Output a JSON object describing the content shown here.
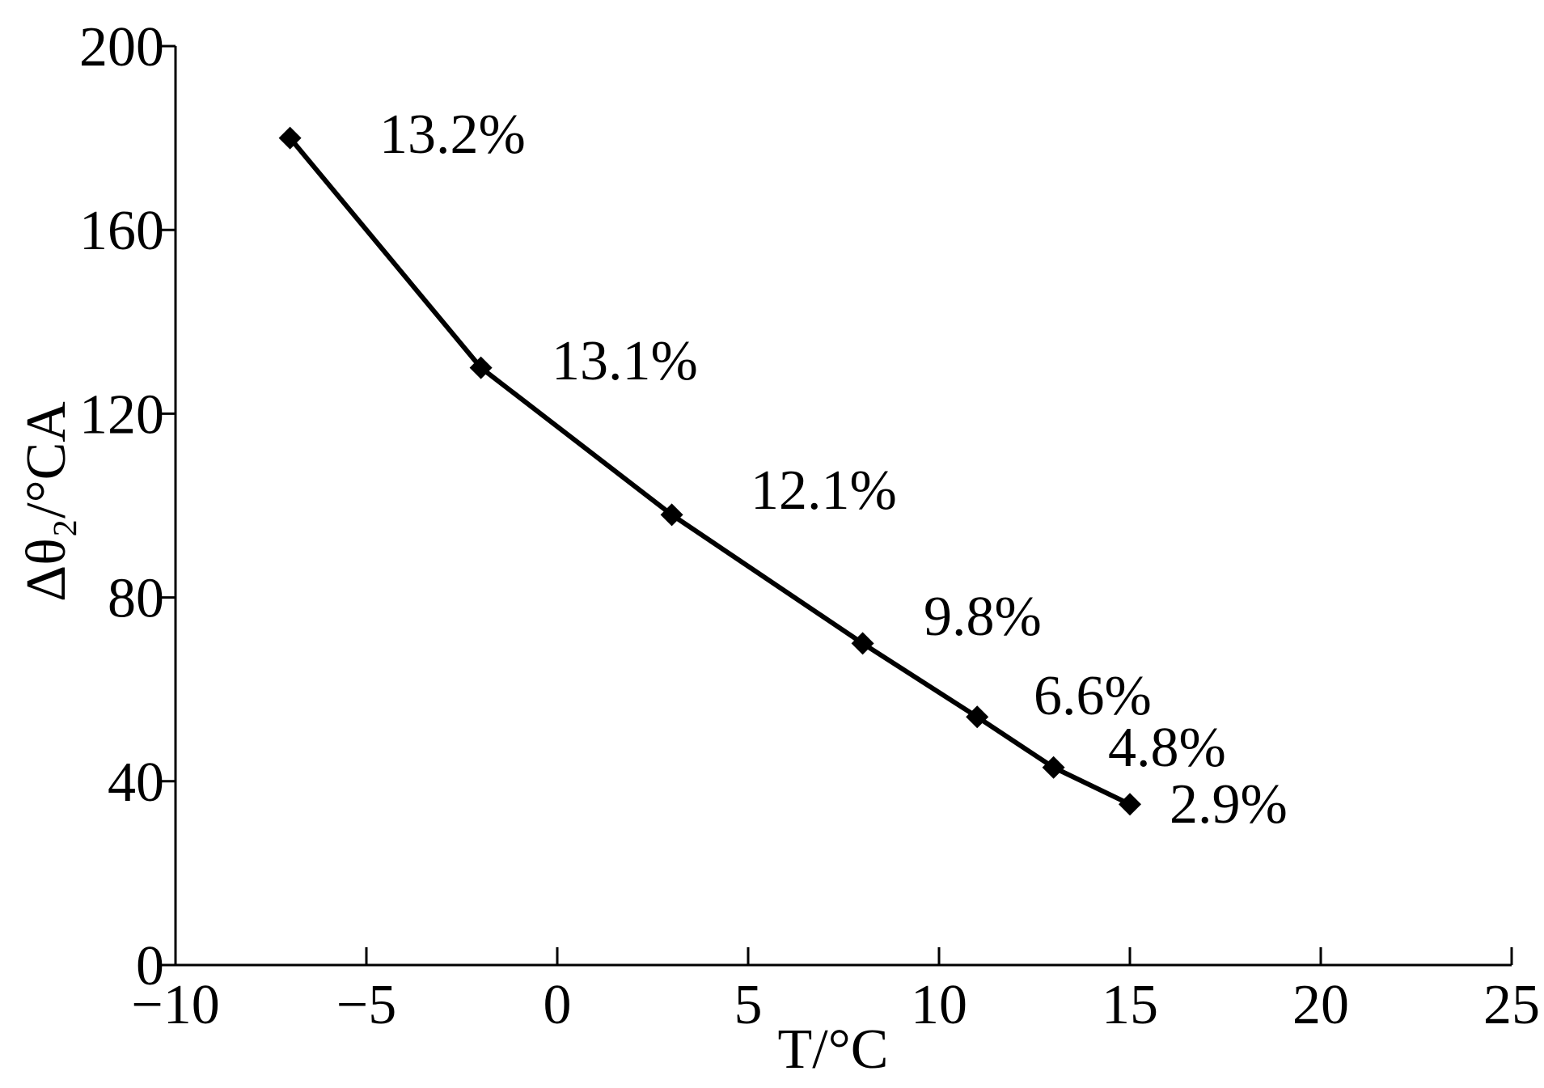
{
  "chart_data": {
    "type": "line",
    "x_label": "T/°C",
    "y_label": "Δθ₂/°CA",
    "x": [
      -7,
      -2,
      3,
      8,
      11,
      13,
      15
    ],
    "series": [
      {
        "color": "#000000",
        "values": [
          180,
          130,
          98,
          70,
          54,
          43,
          35
        ]
      }
    ],
    "annotations": [
      "13.2%",
      "13.1%",
      "12.1%",
      "9.8%",
      "6.6%",
      "4.8%",
      "2.9%"
    ],
    "xlim": [
      -10,
      25
    ],
    "xticks": [
      {
        "value": -10,
        "label": "−10"
      },
      {
        "value": -5,
        "label": "−5"
      },
      0,
      5,
      10,
      15,
      20,
      25
    ],
    "ylim": [
      0,
      200
    ],
    "yticks": [
      0,
      40,
      80,
      120,
      160,
      200
    ],
    "grid": false
  }
}
